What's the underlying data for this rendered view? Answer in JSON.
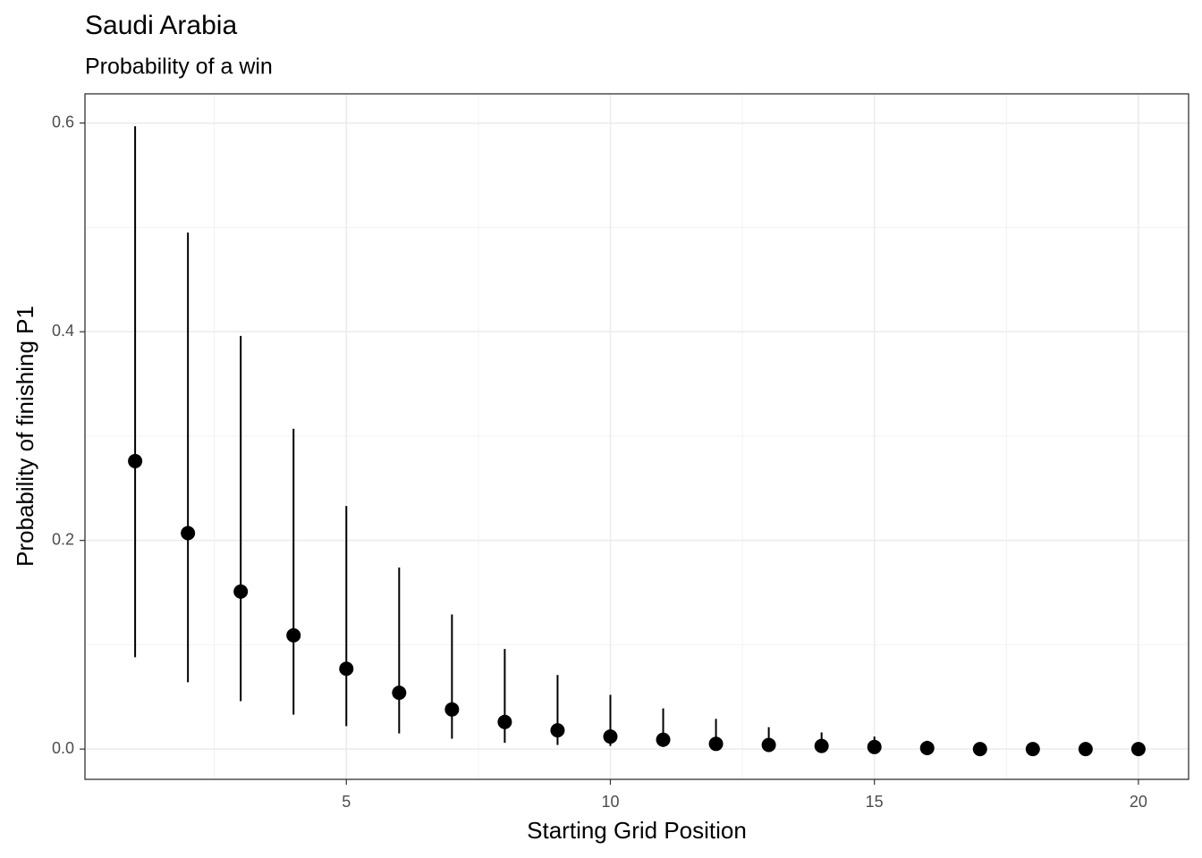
{
  "chart_data": {
    "type": "pointrange",
    "title": "Saudi Arabia",
    "subtitle": "Probability of a win",
    "x_label": "Starting Grid Position",
    "y_label": "Probability of finishing P1",
    "x": [
      1,
      2,
      3,
      4,
      5,
      6,
      7,
      8,
      9,
      10,
      11,
      12,
      13,
      14,
      15,
      16,
      17,
      18,
      19,
      20
    ],
    "series": [
      {
        "color": "#000000",
        "values": [
          0.276,
          0.207,
          0.151,
          0.109,
          0.077,
          0.054,
          0.038,
          0.026,
          0.018,
          0.012,
          0.009,
          0.005,
          0.004,
          0.003,
          0.002,
          0.001,
          0.0,
          0.0,
          0.0,
          0.0
        ],
        "lower": [
          0.088,
          0.064,
          0.046,
          0.033,
          0.022,
          0.015,
          0.01,
          0.006,
          0.004,
          0.003,
          0.002,
          0.001,
          0.001,
          0.0,
          0.0,
          0.0,
          0.0,
          0.0,
          0.0,
          0.0
        ],
        "upper": [
          0.597,
          0.495,
          0.396,
          0.307,
          0.233,
          0.174,
          0.129,
          0.096,
          0.071,
          0.052,
          0.039,
          0.029,
          0.021,
          0.016,
          0.012,
          0.008,
          0.004,
          0.003,
          0.002,
          0.001
        ]
      }
    ],
    "xlim": [
      0.05,
      20.95
    ],
    "ylim": [
      -0.029,
      0.628
    ],
    "xticks": [
      5,
      10,
      15,
      20
    ],
    "yticks": [
      {
        "value": 0,
        "label": "0.0"
      },
      0.2,
      0.4,
      0.6
    ],
    "grid": true
  }
}
